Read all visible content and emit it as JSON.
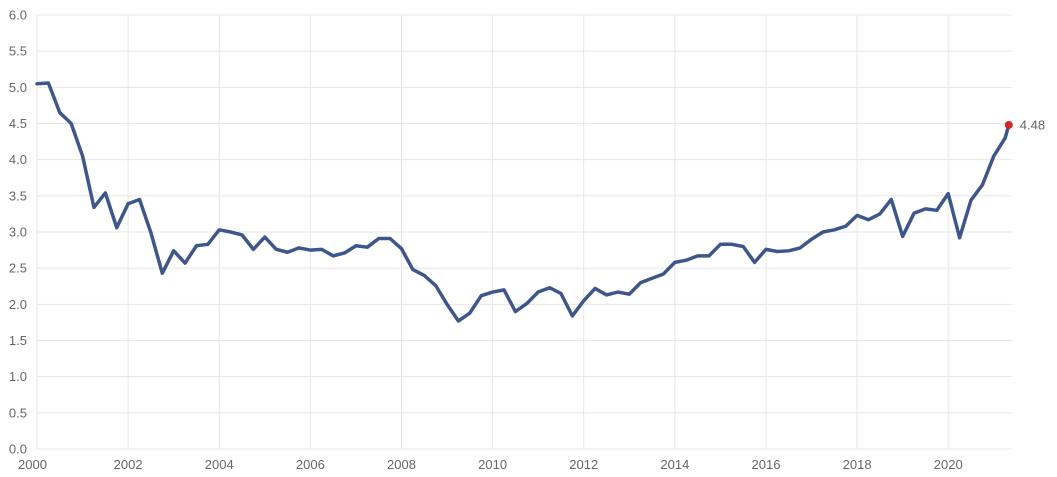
{
  "chart_data": {
    "type": "line",
    "title": "",
    "xlabel": "",
    "ylabel": "",
    "xlim": [
      2000,
      2021.4
    ],
    "ylim": [
      0,
      6
    ],
    "grid": true,
    "legend": "none",
    "x_ticks": [
      2000,
      2002,
      2004,
      2006,
      2008,
      2010,
      2012,
      2014,
      2016,
      2018,
      2020
    ],
    "y_ticks": [
      "0.0",
      "0.5",
      "1.0",
      "1.5",
      "2.0",
      "2.5",
      "3.0",
      "3.5",
      "4.0",
      "4.5",
      "5.0",
      "5.5",
      "6.0"
    ],
    "series": [
      {
        "color": "#3d568c",
        "x": [
          2000.0,
          2000.25,
          2000.5,
          2000.75,
          2001.0,
          2001.25,
          2001.5,
          2001.75,
          2002.0,
          2002.25,
          2002.5,
          2002.75,
          2003.0,
          2003.25,
          2003.5,
          2003.75,
          2004.0,
          2004.25,
          2004.5,
          2004.75,
          2005.0,
          2005.25,
          2005.5,
          2005.75,
          2006.0,
          2006.25,
          2006.5,
          2006.75,
          2007.0,
          2007.25,
          2007.5,
          2007.75,
          2008.0,
          2008.25,
          2008.5,
          2008.75,
          2009.0,
          2009.25,
          2009.5,
          2009.75,
          2010.0,
          2010.25,
          2010.5,
          2010.75,
          2011.0,
          2011.25,
          2011.5,
          2011.75,
          2012.0,
          2012.25,
          2012.5,
          2012.75,
          2013.0,
          2013.25,
          2013.5,
          2013.75,
          2014.0,
          2014.25,
          2014.5,
          2014.75,
          2015.0,
          2015.25,
          2015.5,
          2015.75,
          2016.0,
          2016.25,
          2016.5,
          2016.75,
          2017.0,
          2017.25,
          2017.5,
          2017.75,
          2018.0,
          2018.25,
          2018.5,
          2018.75,
          2019.0,
          2019.25,
          2019.5,
          2019.75,
          2020.0,
          2020.25,
          2020.5,
          2020.75,
          2021.0,
          2021.25,
          2021.33
        ],
        "values": [
          5.05,
          5.06,
          4.65,
          4.5,
          4.05,
          3.34,
          3.54,
          3.06,
          3.39,
          3.45,
          2.99,
          2.43,
          2.74,
          2.57,
          2.81,
          2.83,
          3.03,
          3.0,
          2.96,
          2.76,
          2.93,
          2.76,
          2.72,
          2.78,
          2.75,
          2.76,
          2.67,
          2.71,
          2.81,
          2.79,
          2.91,
          2.91,
          2.77,
          2.48,
          2.4,
          2.26,
          2.0,
          1.77,
          1.88,
          2.12,
          2.17,
          2.2,
          1.9,
          2.01,
          2.17,
          2.23,
          2.15,
          1.84,
          2.05,
          2.22,
          2.13,
          2.17,
          2.14,
          2.3,
          2.36,
          2.42,
          2.58,
          2.61,
          2.67,
          2.67,
          2.83,
          2.83,
          2.8,
          2.58,
          2.76,
          2.73,
          2.74,
          2.78,
          2.9,
          3.0,
          3.03,
          3.08,
          3.23,
          3.17,
          3.25,
          3.45,
          2.94,
          3.26,
          3.32,
          3.3,
          3.53,
          2.92,
          3.44,
          3.65,
          4.05,
          4.3,
          4.48
        ]
      }
    ],
    "last_point": {
      "label": "4.48",
      "color": "#d62728"
    }
  }
}
